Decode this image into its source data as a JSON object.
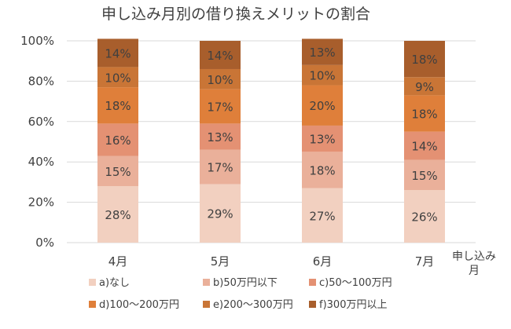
{
  "chart_data": {
    "type": "bar",
    "stacked": true,
    "title": "申し込み月別の借り換えメリットの割合",
    "xlabel": "申し込み月",
    "ylabel": "",
    "categories": [
      "4月",
      "5月",
      "6月",
      "7月"
    ],
    "ylim": [
      0,
      100
    ],
    "yticks": [
      "0%",
      "20%",
      "40%",
      "60%",
      "80%",
      "100%"
    ],
    "grid": true,
    "legend_position": "bottom",
    "series": [
      {
        "name": "a)なし",
        "color": "#f2d0c0",
        "values": [
          28,
          29,
          27,
          26
        ]
      },
      {
        "name": "b)50万円以下",
        "color": "#eab09a",
        "values": [
          15,
          17,
          18,
          15
        ]
      },
      {
        "name": "c)50～100万円",
        "color": "#e49173",
        "values": [
          16,
          13,
          13,
          14
        ]
      },
      {
        "name": "d)100～200万円",
        "color": "#df7f3a",
        "values": [
          18,
          17,
          20,
          18
        ]
      },
      {
        "name": "e)200～300万円",
        "color": "#c97536",
        "values": [
          10,
          10,
          10,
          9
        ]
      },
      {
        "name": "f)300万円以上",
        "color": "#a85e2c",
        "values": [
          14,
          14,
          13,
          18
        ]
      }
    ]
  }
}
